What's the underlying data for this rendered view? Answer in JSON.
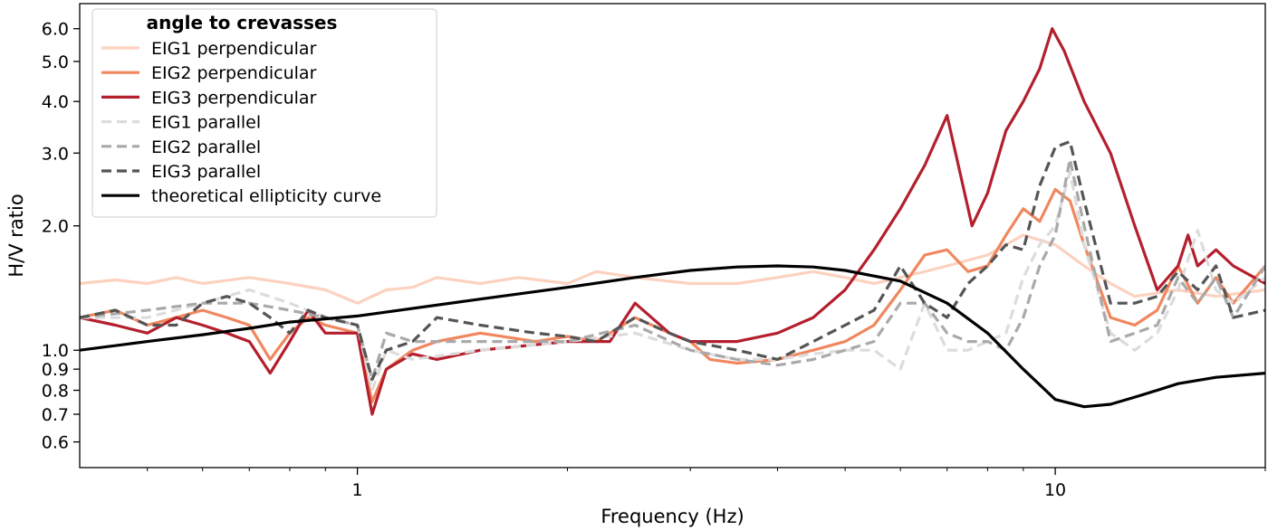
{
  "chart_data": {
    "type": "line",
    "xlabel": "Frequency (Hz)",
    "ylabel": "H/V ratio",
    "xscale": "log",
    "yscale": "log",
    "xlim": [
      0.4,
      20
    ],
    "ylim": [
      0.52,
      6.9
    ],
    "xticks": [
      {
        "value": 1,
        "label": "1"
      },
      {
        "value": 10,
        "label": "10"
      }
    ],
    "yticks": [
      {
        "value": 0.6,
        "label": "0.6"
      },
      {
        "value": 0.7,
        "label": "0.7"
      },
      {
        "value": 0.8,
        "label": "0.8"
      },
      {
        "value": 0.9,
        "label": "0.9"
      },
      {
        "value": 1.0,
        "label": "1.0"
      },
      {
        "value": 2.0,
        "label": "2.0"
      },
      {
        "value": 3.0,
        "label": "3.0"
      },
      {
        "value": 4.0,
        "label": "4.0"
      },
      {
        "value": 5.0,
        "label": "5.0"
      },
      {
        "value": 6.0,
        "label": "6.0"
      }
    ],
    "legend": {
      "title": "angle to crevasses",
      "placement": "upper-left"
    },
    "series": [
      {
        "name": "EIG1 perpendicular",
        "color": "#fcd2bf",
        "dash": "solid",
        "points": [
          [
            0.4,
            1.45
          ],
          [
            0.45,
            1.48
          ],
          [
            0.5,
            1.45
          ],
          [
            0.55,
            1.5
          ],
          [
            0.6,
            1.45
          ],
          [
            0.7,
            1.5
          ],
          [
            0.8,
            1.45
          ],
          [
            0.9,
            1.4
          ],
          [
            1.0,
            1.3
          ],
          [
            1.1,
            1.4
          ],
          [
            1.2,
            1.42
          ],
          [
            1.3,
            1.5
          ],
          [
            1.5,
            1.45
          ],
          [
            1.7,
            1.5
          ],
          [
            2.0,
            1.45
          ],
          [
            2.2,
            1.55
          ],
          [
            2.5,
            1.5
          ],
          [
            3.0,
            1.45
          ],
          [
            3.5,
            1.45
          ],
          [
            4.0,
            1.5
          ],
          [
            4.5,
            1.55
          ],
          [
            5.0,
            1.5
          ],
          [
            5.5,
            1.45
          ],
          [
            6.0,
            1.5
          ],
          [
            6.5,
            1.55
          ],
          [
            7.0,
            1.6
          ],
          [
            8.0,
            1.7
          ],
          [
            9.0,
            1.9
          ],
          [
            10.0,
            1.8
          ],
          [
            11.0,
            1.6
          ],
          [
            12.0,
            1.45
          ],
          [
            13.0,
            1.35
          ],
          [
            15.0,
            1.4
          ],
          [
            17.0,
            1.35
          ],
          [
            20.0,
            1.4
          ]
        ]
      },
      {
        "name": "EIG2 perpendicular",
        "color": "#f0875f",
        "dash": "solid",
        "points": [
          [
            0.4,
            1.2
          ],
          [
            0.45,
            1.25
          ],
          [
            0.5,
            1.15
          ],
          [
            0.55,
            1.2
          ],
          [
            0.6,
            1.25
          ],
          [
            0.65,
            1.2
          ],
          [
            0.7,
            1.15
          ],
          [
            0.75,
            0.95
          ],
          [
            0.8,
            1.1
          ],
          [
            0.85,
            1.2
          ],
          [
            0.9,
            1.15
          ],
          [
            1.0,
            1.1
          ],
          [
            1.05,
            0.75
          ],
          [
            1.1,
            0.9
          ],
          [
            1.2,
            1.0
          ],
          [
            1.3,
            1.05
          ],
          [
            1.5,
            1.1
          ],
          [
            1.8,
            1.05
          ],
          [
            2.0,
            1.08
          ],
          [
            2.2,
            1.05
          ],
          [
            2.5,
            1.2
          ],
          [
            2.8,
            1.1
          ],
          [
            3.0,
            1.05
          ],
          [
            3.2,
            0.95
          ],
          [
            3.5,
            0.93
          ],
          [
            4.0,
            0.95
          ],
          [
            4.5,
            1.0
          ],
          [
            5.0,
            1.05
          ],
          [
            5.5,
            1.15
          ],
          [
            6.0,
            1.4
          ],
          [
            6.5,
            1.7
          ],
          [
            7.0,
            1.75
          ],
          [
            7.5,
            1.55
          ],
          [
            8.0,
            1.6
          ],
          [
            8.5,
            1.9
          ],
          [
            9.0,
            2.2
          ],
          [
            9.5,
            2.05
          ],
          [
            10.0,
            2.45
          ],
          [
            10.5,
            2.3
          ],
          [
            11.0,
            1.8
          ],
          [
            12.0,
            1.2
          ],
          [
            13.0,
            1.15
          ],
          [
            14.0,
            1.25
          ],
          [
            15.0,
            1.6
          ],
          [
            16.0,
            1.3
          ],
          [
            17.0,
            1.5
          ],
          [
            18.0,
            1.3
          ],
          [
            20.0,
            1.6
          ]
        ]
      },
      {
        "name": "EIG3 perpendicular",
        "color": "#b41f2d",
        "dash": "solid",
        "points": [
          [
            0.4,
            1.2
          ],
          [
            0.45,
            1.15
          ],
          [
            0.5,
            1.1
          ],
          [
            0.55,
            1.2
          ],
          [
            0.6,
            1.15
          ],
          [
            0.65,
            1.1
          ],
          [
            0.7,
            1.05
          ],
          [
            0.75,
            0.88
          ],
          [
            0.8,
            1.05
          ],
          [
            0.85,
            1.25
          ],
          [
            0.9,
            1.1
          ],
          [
            1.0,
            1.1
          ],
          [
            1.05,
            0.7
          ],
          [
            1.1,
            0.9
          ],
          [
            1.2,
            0.98
          ],
          [
            1.3,
            0.95
          ],
          [
            1.5,
            1.0
          ],
          [
            2.0,
            1.05
          ],
          [
            2.3,
            1.05
          ],
          [
            2.5,
            1.3
          ],
          [
            2.8,
            1.1
          ],
          [
            3.0,
            1.05
          ],
          [
            3.5,
            1.05
          ],
          [
            4.0,
            1.1
          ],
          [
            4.5,
            1.2
          ],
          [
            5.0,
            1.4
          ],
          [
            5.5,
            1.75
          ],
          [
            6.0,
            2.2
          ],
          [
            6.5,
            2.8
          ],
          [
            7.0,
            3.7
          ],
          [
            7.3,
            2.7
          ],
          [
            7.6,
            2.0
          ],
          [
            8.0,
            2.4
          ],
          [
            8.5,
            3.4
          ],
          [
            9.0,
            4.0
          ],
          [
            9.5,
            4.8
          ],
          [
            9.9,
            6.0
          ],
          [
            10.3,
            5.3
          ],
          [
            11.0,
            4.0
          ],
          [
            12.0,
            3.0
          ],
          [
            13.0,
            2.0
          ],
          [
            14.0,
            1.4
          ],
          [
            15.0,
            1.6
          ],
          [
            15.5,
            1.9
          ],
          [
            16.0,
            1.6
          ],
          [
            17.0,
            1.75
          ],
          [
            18.0,
            1.6
          ],
          [
            20.0,
            1.45
          ]
        ]
      },
      {
        "name": "EIG1 parallel",
        "color": "#dcdcdc",
        "dash": "dashed",
        "points": [
          [
            0.4,
            1.2
          ],
          [
            0.5,
            1.2
          ],
          [
            0.6,
            1.3
          ],
          [
            0.7,
            1.4
          ],
          [
            0.8,
            1.3
          ],
          [
            0.9,
            1.2
          ],
          [
            1.0,
            1.15
          ],
          [
            1.05,
            0.8
          ],
          [
            1.1,
            1.0
          ],
          [
            1.2,
            0.95
          ],
          [
            1.5,
            1.0
          ],
          [
            2.0,
            1.05
          ],
          [
            2.5,
            1.1
          ],
          [
            3.0,
            1.0
          ],
          [
            3.5,
            0.95
          ],
          [
            4.0,
            0.95
          ],
          [
            4.5,
            0.98
          ],
          [
            5.0,
            1.0
          ],
          [
            5.5,
            1.0
          ],
          [
            6.0,
            0.9
          ],
          [
            6.5,
            1.3
          ],
          [
            7.0,
            1.0
          ],
          [
            7.5,
            1.0
          ],
          [
            8.0,
            1.05
          ],
          [
            8.5,
            1.1
          ],
          [
            9.0,
            1.5
          ],
          [
            9.5,
            1.8
          ],
          [
            10.0,
            2.0
          ],
          [
            10.5,
            2.7
          ],
          [
            11.0,
            1.8
          ],
          [
            12.0,
            1.1
          ],
          [
            13.0,
            1.0
          ],
          [
            14.0,
            1.1
          ],
          [
            15.0,
            1.4
          ],
          [
            16.0,
            1.95
          ],
          [
            17.0,
            1.4
          ],
          [
            18.0,
            1.3
          ],
          [
            20.0,
            1.5
          ]
        ]
      },
      {
        "name": "EIG2 parallel",
        "color": "#a9a9a9",
        "dash": "dashed",
        "points": [
          [
            0.4,
            1.2
          ],
          [
            0.5,
            1.25
          ],
          [
            0.6,
            1.3
          ],
          [
            0.7,
            1.3
          ],
          [
            0.8,
            1.25
          ],
          [
            0.9,
            1.2
          ],
          [
            1.0,
            1.15
          ],
          [
            1.05,
            0.85
          ],
          [
            1.1,
            1.1
          ],
          [
            1.2,
            1.05
          ],
          [
            1.5,
            1.05
          ],
          [
            2.0,
            1.05
          ],
          [
            2.5,
            1.15
          ],
          [
            3.0,
            1.0
          ],
          [
            3.5,
            0.95
          ],
          [
            4.0,
            0.92
          ],
          [
            4.5,
            0.95
          ],
          [
            5.0,
            1.0
          ],
          [
            5.5,
            1.05
          ],
          [
            6.0,
            1.3
          ],
          [
            6.5,
            1.3
          ],
          [
            7.0,
            1.1
          ],
          [
            7.5,
            1.05
          ],
          [
            8.0,
            1.05
          ],
          [
            8.5,
            1.0
          ],
          [
            9.0,
            1.2
          ],
          [
            9.5,
            1.6
          ],
          [
            10.0,
            1.9
          ],
          [
            10.5,
            2.9
          ],
          [
            11.0,
            2.0
          ],
          [
            12.0,
            1.05
          ],
          [
            13.0,
            1.1
          ],
          [
            14.0,
            1.15
          ],
          [
            15.0,
            1.5
          ],
          [
            16.0,
            1.3
          ],
          [
            17.0,
            1.5
          ],
          [
            18.0,
            1.2
          ],
          [
            20.0,
            1.6
          ]
        ]
      },
      {
        "name": "EIG3 parallel",
        "color": "#555555",
        "dash": "dashed",
        "points": [
          [
            0.4,
            1.2
          ],
          [
            0.45,
            1.25
          ],
          [
            0.5,
            1.15
          ],
          [
            0.55,
            1.15
          ],
          [
            0.6,
            1.3
          ],
          [
            0.65,
            1.35
          ],
          [
            0.7,
            1.3
          ],
          [
            0.75,
            1.2
          ],
          [
            0.8,
            1.1
          ],
          [
            0.85,
            1.25
          ],
          [
            0.9,
            1.2
          ],
          [
            1.0,
            1.15
          ],
          [
            1.05,
            0.85
          ],
          [
            1.1,
            1.0
          ],
          [
            1.2,
            1.05
          ],
          [
            1.3,
            1.2
          ],
          [
            1.5,
            1.15
          ],
          [
            1.8,
            1.1
          ],
          [
            2.0,
            1.08
          ],
          [
            2.2,
            1.05
          ],
          [
            2.5,
            1.2
          ],
          [
            2.8,
            1.1
          ],
          [
            3.0,
            1.05
          ],
          [
            3.5,
            1.0
          ],
          [
            4.0,
            0.95
          ],
          [
            4.5,
            1.05
          ],
          [
            5.0,
            1.15
          ],
          [
            5.5,
            1.25
          ],
          [
            6.0,
            1.6
          ],
          [
            6.5,
            1.3
          ],
          [
            7.0,
            1.2
          ],
          [
            7.5,
            1.45
          ],
          [
            8.0,
            1.6
          ],
          [
            8.5,
            1.8
          ],
          [
            9.0,
            1.75
          ],
          [
            9.5,
            2.5
          ],
          [
            10.0,
            3.1
          ],
          [
            10.5,
            3.2
          ],
          [
            11.0,
            2.3
          ],
          [
            12.0,
            1.3
          ],
          [
            13.0,
            1.3
          ],
          [
            14.0,
            1.35
          ],
          [
            15.0,
            1.55
          ],
          [
            16.0,
            1.4
          ],
          [
            17.0,
            1.6
          ],
          [
            18.0,
            1.2
          ],
          [
            20.0,
            1.25
          ]
        ]
      },
      {
        "name": "theoretical ellipticity curve",
        "color": "#000000",
        "dash": "solid",
        "points": [
          [
            0.4,
            1.0
          ],
          [
            0.5,
            1.05
          ],
          [
            0.6,
            1.09
          ],
          [
            0.7,
            1.13
          ],
          [
            0.8,
            1.17
          ],
          [
            1.0,
            1.21
          ],
          [
            1.5,
            1.33
          ],
          [
            2.0,
            1.42
          ],
          [
            2.5,
            1.5
          ],
          [
            3.0,
            1.56
          ],
          [
            3.5,
            1.59
          ],
          [
            4.0,
            1.6
          ],
          [
            4.5,
            1.59
          ],
          [
            5.0,
            1.56
          ],
          [
            6.0,
            1.47
          ],
          [
            7.0,
            1.3
          ],
          [
            8.0,
            1.1
          ],
          [
            9.0,
            0.9
          ],
          [
            10.0,
            0.76
          ],
          [
            11.0,
            0.73
          ],
          [
            12.0,
            0.74
          ],
          [
            13.0,
            0.77
          ],
          [
            14.0,
            0.8
          ],
          [
            15.0,
            0.83
          ],
          [
            17.0,
            0.86
          ],
          [
            20.0,
            0.88
          ]
        ]
      }
    ]
  }
}
